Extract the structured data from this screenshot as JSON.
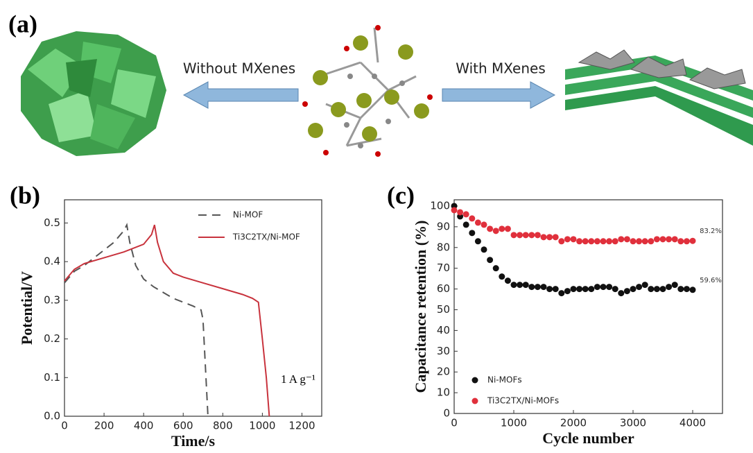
{
  "figure": {
    "panel_label": "(a)",
    "left_caption": "Without MXenes",
    "right_caption": "With MXenes"
  },
  "chart_data": [
    {
      "type": "line",
      "panel_label": "(b)",
      "x_label": "Time/s",
      "y_label": "Potential/V",
      "annotation": "1 A g⁻¹",
      "xlim": [
        0,
        1300
      ],
      "ylim": [
        0,
        0.56
      ],
      "xticks": [
        0,
        200,
        400,
        600,
        800,
        1000,
        1200
      ],
      "yticks": [
        {
          "value": 0,
          "label": "0.0"
        },
        0.1,
        0.2,
        0.3,
        0.4,
        0.5
      ],
      "legend": "upper right",
      "series": [
        {
          "name": "Ni-MOF",
          "color": "#555555",
          "line_style": "dashed",
          "x": [
            0,
            50,
            100,
            150,
            200,
            250,
            300,
            315,
            330,
            360,
            400,
            450,
            500,
            550,
            600,
            650,
            690,
            700,
            710,
            720,
            725
          ],
          "values": [
            0.345,
            0.375,
            0.39,
            0.41,
            0.43,
            0.45,
            0.48,
            0.495,
            0.45,
            0.39,
            0.355,
            0.335,
            0.32,
            0.305,
            0.295,
            0.285,
            0.275,
            0.25,
            0.15,
            0.05,
            0.0
          ]
        },
        {
          "name": "Ti3C2TX/Ni-MOF",
          "color": "#c8323c",
          "line_style": "solid",
          "x": [
            0,
            50,
            100,
            200,
            300,
            400,
            440,
            455,
            470,
            500,
            550,
            600,
            700,
            800,
            900,
            950,
            980,
            1000,
            1020,
            1035
          ],
          "values": [
            0.35,
            0.38,
            0.395,
            0.41,
            0.425,
            0.445,
            0.47,
            0.495,
            0.45,
            0.4,
            0.37,
            0.36,
            0.345,
            0.33,
            0.315,
            0.305,
            0.295,
            0.2,
            0.1,
            0.0
          ]
        }
      ]
    },
    {
      "type": "scatter",
      "panel_label": "(c)",
      "x_label": "Cycle number",
      "y_label": "Capacitance retention (%)",
      "xlim": [
        0,
        4500
      ],
      "ylim": [
        0,
        103
      ],
      "xticks": [
        0,
        1000,
        2000,
        3000,
        4000
      ],
      "yticks": [
        0,
        10,
        20,
        30,
        40,
        50,
        60,
        70,
        80,
        90,
        100
      ],
      "legend": "lower left",
      "series": [
        {
          "name": "Ni-MOFs",
          "color": "#111111",
          "x": [
            0,
            100,
            200,
            300,
            400,
            500,
            600,
            700,
            800,
            900,
            1000,
            1100,
            1200,
            1300,
            1400,
            1500,
            1600,
            1700,
            1800,
            1900,
            2000,
            2100,
            2200,
            2300,
            2400,
            2500,
            2600,
            2700,
            2800,
            2900,
            3000,
            3100,
            3200,
            3300,
            3400,
            3500,
            3600,
            3700,
            3800,
            3900,
            4000
          ],
          "values": [
            100,
            95,
            91,
            87,
            83,
            79,
            74,
            70,
            66,
            64,
            62,
            62,
            62,
            61,
            61,
            61,
            60,
            60,
            58,
            59,
            60,
            60,
            60,
            60,
            61,
            61,
            61,
            60,
            58,
            59,
            60,
            61,
            62,
            60,
            60,
            60,
            61,
            62,
            60,
            60,
            59.6
          ],
          "value_labels": [
            null,
            null,
            null,
            null,
            null,
            null,
            null,
            null,
            null,
            null,
            null,
            null,
            null,
            null,
            null,
            null,
            null,
            null,
            null,
            null,
            null,
            null,
            null,
            null,
            null,
            null,
            null,
            null,
            null,
            null,
            null,
            null,
            null,
            null,
            null,
            null,
            null,
            null,
            null,
            null,
            "59.6%"
          ]
        },
        {
          "name": "Ti3C2TX/Ni-MOFs",
          "color": "#e0303c",
          "x": [
            0,
            100,
            200,
            300,
            400,
            500,
            600,
            700,
            800,
            900,
            1000,
            1100,
            1200,
            1300,
            1400,
            1500,
            1600,
            1700,
            1800,
            1900,
            2000,
            2100,
            2200,
            2300,
            2400,
            2500,
            2600,
            2700,
            2800,
            2900,
            3000,
            3100,
            3200,
            3300,
            3400,
            3500,
            3600,
            3700,
            3800,
            3900,
            4000
          ],
          "values": [
            98,
            97,
            96,
            94,
            92,
            91,
            89,
            88,
            89,
            89,
            86,
            86,
            86,
            86,
            86,
            85,
            85,
            85,
            83,
            84,
            84,
            83,
            83,
            83,
            83,
            83,
            83,
            83,
            84,
            84,
            83,
            83,
            83,
            83,
            84,
            84,
            84,
            84,
            83,
            83,
            83.2
          ],
          "value_labels": [
            null,
            null,
            null,
            null,
            null,
            null,
            null,
            null,
            null,
            null,
            null,
            null,
            null,
            null,
            null,
            null,
            null,
            null,
            null,
            null,
            null,
            null,
            null,
            null,
            null,
            null,
            null,
            null,
            null,
            null,
            null,
            null,
            null,
            null,
            null,
            null,
            null,
            null,
            null,
            null,
            "83.2%"
          ]
        }
      ]
    }
  ]
}
